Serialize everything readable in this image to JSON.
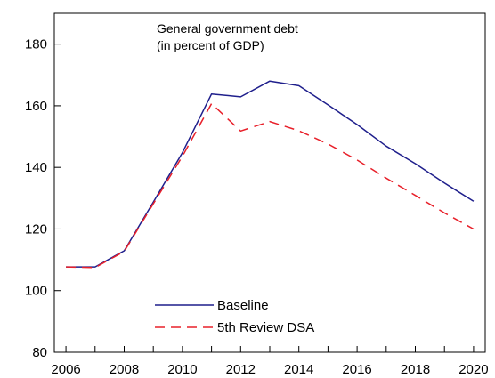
{
  "chart_data": {
    "type": "line",
    "title": [
      "General government debt",
      "(in percent of GDP)"
    ],
    "x": [
      2006,
      2007,
      2008,
      2009,
      2010,
      2011,
      2012,
      2013,
      2014,
      2015,
      2016,
      2017,
      2018,
      2019,
      2020
    ],
    "series": [
      {
        "name": "Baseline",
        "color": "#1f1f8c",
        "style": "solid",
        "values": [
          107.7,
          107.7,
          112.9,
          128.7,
          144.8,
          163.8,
          162.9,
          168.0,
          166.5,
          160.3,
          153.9,
          146.9,
          141.2,
          134.9,
          129.0
        ]
      },
      {
        "name": "5th Review DSA",
        "color": "#e8202a",
        "style": "dashed",
        "values": [
          107.7,
          107.5,
          112.7,
          128.2,
          143.6,
          160.7,
          151.8,
          154.9,
          151.9,
          147.6,
          142.4,
          136.5,
          130.9,
          125.2,
          120.0
        ]
      }
    ],
    "xlim": [
      2005.6,
      2020.4
    ],
    "ylim": [
      80,
      190
    ],
    "xticks": [
      2006,
      2008,
      2010,
      2012,
      2014,
      2016,
      2018,
      2020
    ],
    "yticks": [
      80,
      100,
      120,
      140,
      160,
      180
    ],
    "grid": false,
    "legend_position": "bottom-center"
  }
}
